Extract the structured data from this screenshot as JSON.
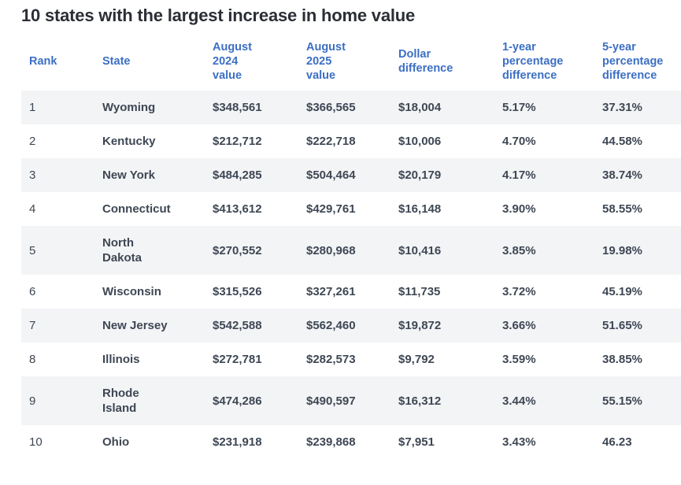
{
  "title": "10 states with the largest increase in home value",
  "colors": {
    "accent_blue": "#3c6fc4",
    "title_text": "#2b2e36",
    "body_text": "#3e4754",
    "row_stripe": "#f3f4f6"
  },
  "table": {
    "columns": [
      {
        "key": "rank",
        "label": "Rank"
      },
      {
        "key": "state",
        "label": "State"
      },
      {
        "key": "aug2024",
        "label": "August\n2024\nvalue"
      },
      {
        "key": "aug2025",
        "label": "August\n2025\nvalue"
      },
      {
        "key": "dollar",
        "label": "Dollar\ndifference"
      },
      {
        "key": "pct1yr",
        "label": "1-year\npercentage\ndifference"
      },
      {
        "key": "pct5yr",
        "label": "5-year\npercentage\ndifference"
      }
    ],
    "rows": [
      {
        "rank": "1",
        "state": "Wyoming",
        "aug2024": "$348,561",
        "aug2025": "$366,565",
        "dollar": "$18,004",
        "pct1yr": "5.17%",
        "pct5yr": "37.31%"
      },
      {
        "rank": "2",
        "state": "Kentucky",
        "aug2024": "$212,712",
        "aug2025": "$222,718",
        "dollar": "$10,006",
        "pct1yr": "4.70%",
        "pct5yr": "44.58%"
      },
      {
        "rank": "3",
        "state": "New York",
        "aug2024": "$484,285",
        "aug2025": "$504,464",
        "dollar": "$20,179",
        "pct1yr": "4.17%",
        "pct5yr": "38.74%"
      },
      {
        "rank": "4",
        "state": "Connecticut",
        "aug2024": "$413,612",
        "aug2025": "$429,761",
        "dollar": "$16,148",
        "pct1yr": "3.90%",
        "pct5yr": "58.55%"
      },
      {
        "rank": "5",
        "state": "North Dakota",
        "aug2024": "$270,552",
        "aug2025": "$280,968",
        "dollar": "$10,416",
        "pct1yr": "3.85%",
        "pct5yr": "19.98%"
      },
      {
        "rank": "6",
        "state": "Wisconsin",
        "aug2024": "$315,526",
        "aug2025": "$327,261",
        "dollar": "$11,735",
        "pct1yr": "3.72%",
        "pct5yr": "45.19%"
      },
      {
        "rank": "7",
        "state": "New Jersey",
        "aug2024": "$542,588",
        "aug2025": "$562,460",
        "dollar": "$19,872",
        "pct1yr": "3.66%",
        "pct5yr": "51.65%"
      },
      {
        "rank": "8",
        "state": "Illinois",
        "aug2024": "$272,781",
        "aug2025": "$282,573",
        "dollar": "$9,792",
        "pct1yr": "3.59%",
        "pct5yr": "38.85%"
      },
      {
        "rank": "9",
        "state": "Rhode Island",
        "aug2024": "$474,286",
        "aug2025": "$490,597",
        "dollar": "$16,312",
        "pct1yr": "3.44%",
        "pct5yr": "55.15%"
      },
      {
        "rank": "10",
        "state": "Ohio",
        "aug2024": "$231,918",
        "aug2025": "$239,868",
        "dollar": "$7,951",
        "pct1yr": "3.43%",
        "pct5yr": "46.23"
      }
    ]
  },
  "chart_data": {
    "type": "table",
    "title": "10 states with the largest increase in home value",
    "columns": [
      "Rank",
      "State",
      "August 2024 value",
      "August 2025 value",
      "Dollar difference",
      "1-year percentage difference",
      "5-year percentage difference"
    ],
    "rows": [
      [
        1,
        "Wyoming",
        348561,
        366565,
        18004,
        "5.17%",
        "37.31%"
      ],
      [
        2,
        "Kentucky",
        212712,
        222718,
        10006,
        "4.70%",
        "44.58%"
      ],
      [
        3,
        "New York",
        484285,
        504464,
        20179,
        "4.17%",
        "38.74%"
      ],
      [
        4,
        "Connecticut",
        413612,
        429761,
        16148,
        "3.90%",
        "58.55%"
      ],
      [
        5,
        "North Dakota",
        270552,
        280968,
        10416,
        "3.85%",
        "19.98%"
      ],
      [
        6,
        "Wisconsin",
        315526,
        327261,
        11735,
        "3.72%",
        "45.19%"
      ],
      [
        7,
        "New Jersey",
        542588,
        562460,
        19872,
        "3.66%",
        "51.65%"
      ],
      [
        8,
        "Illinois",
        272781,
        282573,
        9792,
        "3.59%",
        "38.85%"
      ],
      [
        9,
        "Rhode Island",
        474286,
        490597,
        16312,
        "3.44%",
        "55.15%"
      ],
      [
        10,
        "Ohio",
        231918,
        239868,
        7951,
        "3.43%",
        "46.23"
      ]
    ],
    "layout": {
      "row_striping": true,
      "stripe_rows": "odd",
      "header_text_color": "#3c6fc4"
    }
  }
}
